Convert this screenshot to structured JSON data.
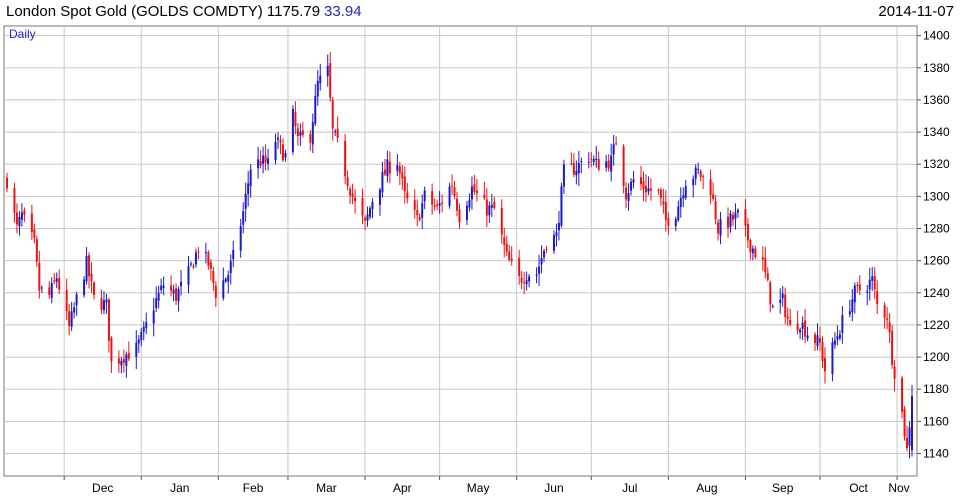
{
  "header": {
    "title": "London Spot Gold (GOLDS COMDTY) 1175.79",
    "change": "33.94",
    "date": "2014-11-07"
  },
  "chart_data": {
    "type": "candlestick",
    "interval_label": "Daily",
    "y_ticks": [
      1140,
      1160,
      1180,
      1200,
      1220,
      1240,
      1260,
      1280,
      1300,
      1320,
      1340,
      1360,
      1380,
      1400
    ],
    "x_labels": [
      "Dec",
      "Jan",
      "Feb",
      "Mar",
      "Apr",
      "May",
      "Jun",
      "Jul",
      "Aug",
      "Sep",
      "Oct",
      "Nov"
    ],
    "ylim": [
      1126,
      1406
    ],
    "grid": true,
    "up_color": "#1a1acc",
    "down_color": "#ee1111",
    "x_start": "2013-11-08",
    "x_end": "2014-11-07",
    "anchors": [
      [
        "2013-11-08",
        1310
      ],
      [
        "2013-11-12",
        1280
      ],
      [
        "2013-11-14",
        1288
      ],
      [
        "2013-11-19",
        1270
      ],
      [
        "2013-11-21",
        1242
      ],
      [
        "2013-11-25",
        1238
      ],
      [
        "2013-11-28",
        1250
      ],
      [
        "2013-12-03",
        1218
      ],
      [
        "2013-12-06",
        1236
      ],
      [
        "2013-12-10",
        1258
      ],
      [
        "2013-12-13",
        1236
      ],
      [
        "2013-12-18",
        1232
      ],
      [
        "2013-12-20",
        1196
      ],
      [
        "2013-12-24",
        1200
      ],
      [
        "2013-12-30",
        1205
      ],
      [
        "2014-01-02",
        1215
      ],
      [
        "2014-01-06",
        1232
      ],
      [
        "2014-01-10",
        1245
      ],
      [
        "2014-01-15",
        1238
      ],
      [
        "2014-01-20",
        1252
      ],
      [
        "2014-01-24",
        1268
      ],
      [
        "2014-01-28",
        1258
      ],
      [
        "2014-01-31",
        1240
      ],
      [
        "2014-02-05",
        1252
      ],
      [
        "2014-02-07",
        1262
      ],
      [
        "2014-02-11",
        1290
      ],
      [
        "2014-02-14",
        1318
      ],
      [
        "2014-02-18",
        1322
      ],
      [
        "2014-02-21",
        1320
      ],
      [
        "2014-02-24",
        1335
      ],
      [
        "2014-02-28",
        1325
      ],
      [
        "2014-03-03",
        1350
      ],
      [
        "2014-03-05",
        1335
      ],
      [
        "2014-03-10",
        1338
      ],
      [
        "2014-03-13",
        1370
      ],
      [
        "2014-03-17",
        1378
      ],
      [
        "2014-03-19",
        1340
      ],
      [
        "2014-03-21",
        1332
      ],
      [
        "2014-03-25",
        1310
      ],
      [
        "2014-03-28",
        1295
      ],
      [
        "2014-04-01",
        1282
      ],
      [
        "2014-04-04",
        1298
      ],
      [
        "2014-04-10",
        1318
      ],
      [
        "2014-04-14",
        1322
      ],
      [
        "2014-04-17",
        1300
      ],
      [
        "2014-04-22",
        1285
      ],
      [
        "2014-04-25",
        1300
      ],
      [
        "2014-04-30",
        1292
      ],
      [
        "2014-05-06",
        1308
      ],
      [
        "2014-05-09",
        1288
      ],
      [
        "2014-05-14",
        1305
      ],
      [
        "2014-05-20",
        1292
      ],
      [
        "2014-05-23",
        1292
      ],
      [
        "2014-05-28",
        1262
      ],
      [
        "2014-06-02",
        1248
      ],
      [
        "2014-06-05",
        1252
      ],
      [
        "2014-06-09",
        1252
      ],
      [
        "2014-06-13",
        1272
      ],
      [
        "2014-06-17",
        1275
      ],
      [
        "2014-06-20",
        1315
      ],
      [
        "2014-06-25",
        1318
      ],
      [
        "2014-06-30",
        1325
      ],
      [
        "2014-07-03",
        1320
      ],
      [
        "2014-07-09",
        1322
      ],
      [
        "2014-07-11",
        1335
      ],
      [
        "2014-07-15",
        1302
      ],
      [
        "2014-07-18",
        1310
      ],
      [
        "2014-07-23",
        1305
      ],
      [
        "2014-07-28",
        1302
      ],
      [
        "2014-07-31",
        1285
      ],
      [
        "2014-08-04",
        1290
      ],
      [
        "2014-08-08",
        1310
      ],
      [
        "2014-08-13",
        1315
      ],
      [
        "2014-08-18",
        1305
      ],
      [
        "2014-08-21",
        1280
      ],
      [
        "2014-08-26",
        1285
      ],
      [
        "2014-08-29",
        1288
      ],
      [
        "2014-09-03",
        1270
      ],
      [
        "2014-09-08",
        1258
      ],
      [
        "2014-09-12",
        1230
      ],
      [
        "2014-09-16",
        1235
      ],
      [
        "2014-09-19",
        1218
      ],
      [
        "2014-09-23",
        1222
      ],
      [
        "2014-09-26",
        1215
      ],
      [
        "2014-10-01",
        1208
      ],
      [
        "2014-10-03",
        1192
      ],
      [
        "2014-10-07",
        1210
      ],
      [
        "2014-10-10",
        1222
      ],
      [
        "2014-10-15",
        1240
      ],
      [
        "2014-10-20",
        1245
      ],
      [
        "2014-10-22",
        1248
      ],
      [
        "2014-10-24",
        1232
      ],
      [
        "2014-10-28",
        1226
      ],
      [
        "2014-10-30",
        1200
      ],
      [
        "2014-11-03",
        1165
      ],
      [
        "2014-11-05",
        1142
      ],
      [
        "2014-11-07",
        1175.79
      ]
    ]
  }
}
